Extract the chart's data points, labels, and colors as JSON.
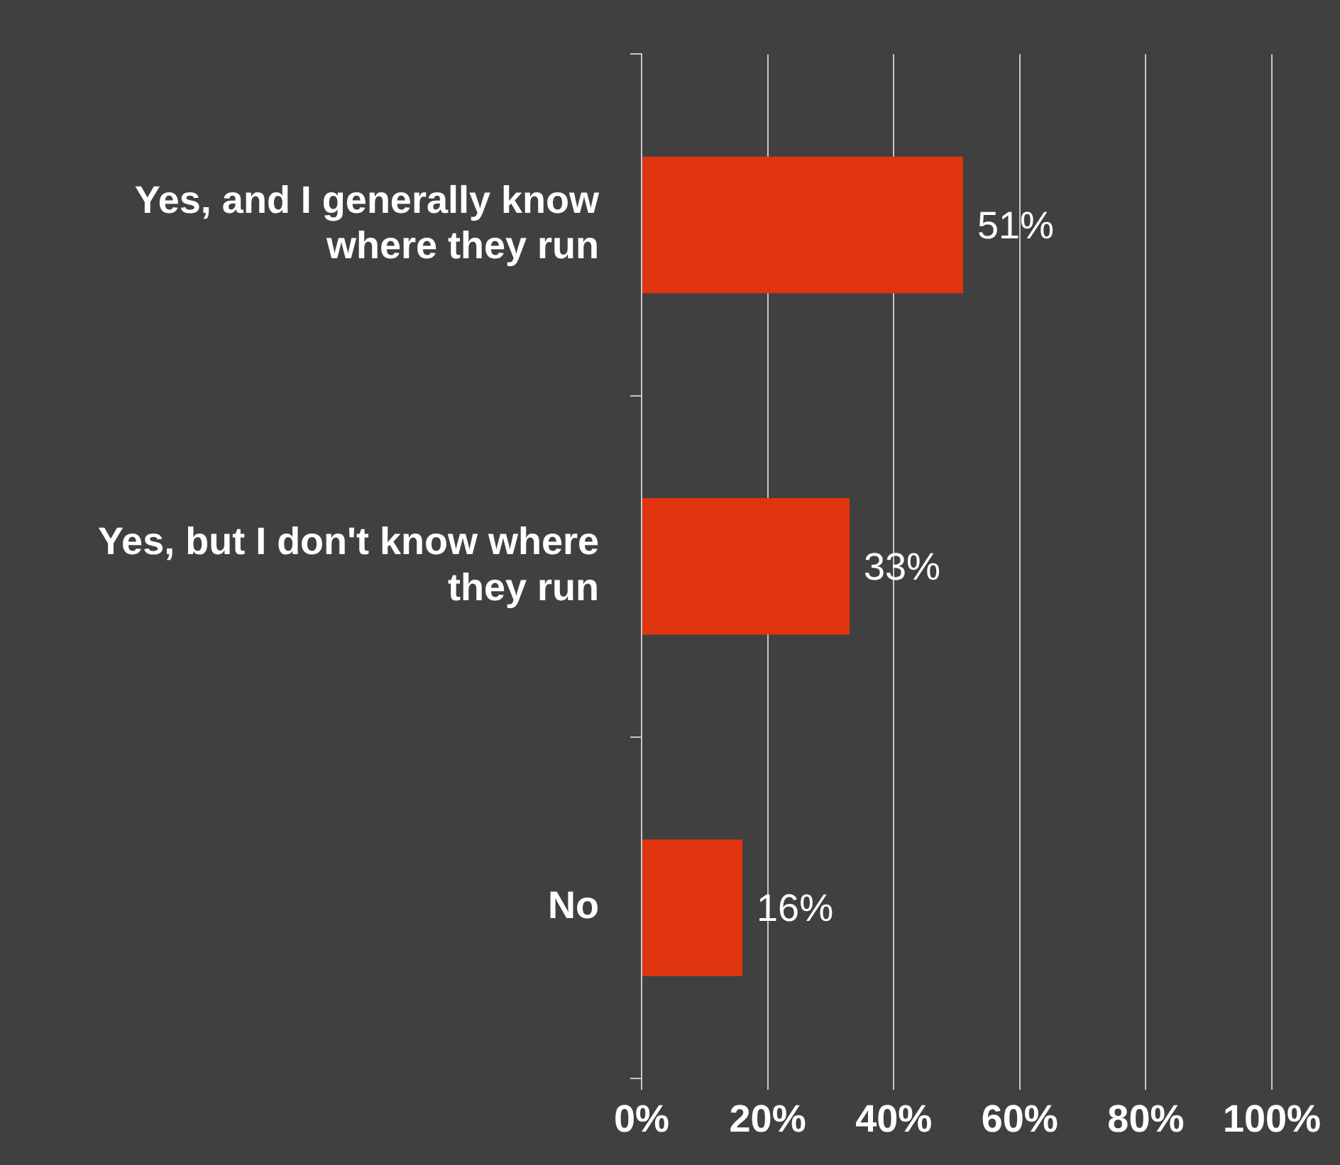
{
  "chart_data": {
    "type": "bar",
    "orientation": "horizontal",
    "categories": [
      "Yes, and I generally know where they run",
      "Yes, but I don't know where they run",
      "No"
    ],
    "values": [
      51,
      33,
      16
    ],
    "color": "#e0340f",
    "value_labels": [
      "51%",
      "33%",
      "16%"
    ],
    "xlim": [
      0,
      100
    ],
    "xticks": [
      {
        "value": 0,
        "label": "0%"
      },
      {
        "value": 20,
        "label": "20%"
      },
      {
        "value": 40,
        "label": "40%"
      },
      {
        "value": 60,
        "label": "60%"
      },
      {
        "value": 80,
        "label": "80%"
      },
      {
        "value": 100,
        "label": "100%"
      }
    ],
    "grid": "x"
  }
}
